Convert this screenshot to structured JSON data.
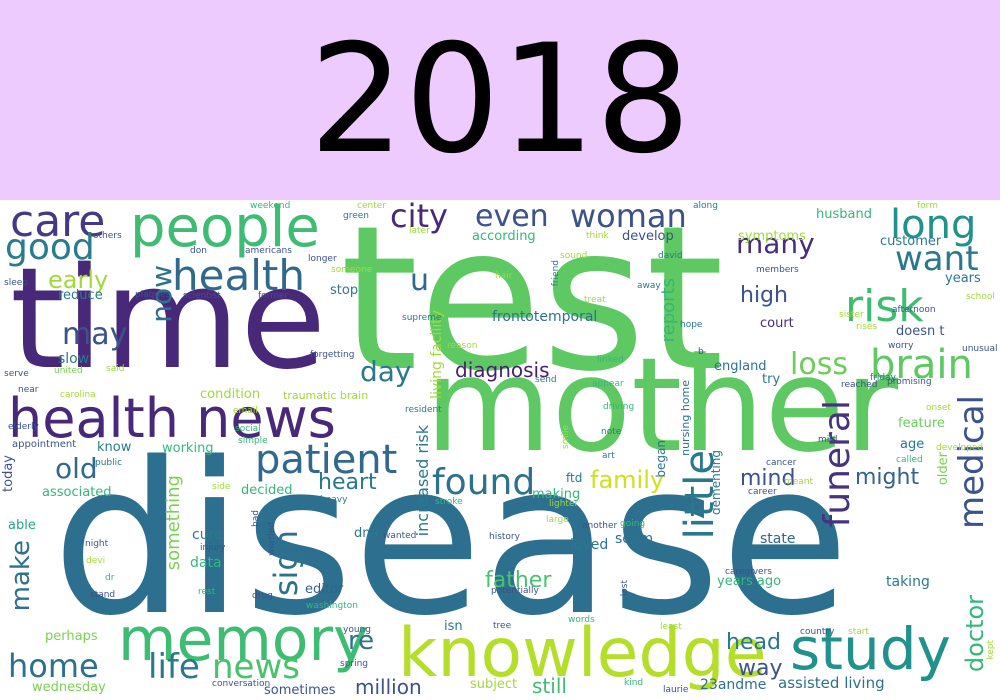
{
  "banner": {
    "title": "2018",
    "background": "#eecbff"
  },
  "cloud": {
    "palette": "viridis",
    "words": [
      {
        "text": "disease",
        "color": "#2d6f8e"
      },
      {
        "text": "test",
        "color": "#5ec962"
      },
      {
        "text": "mother",
        "color": "#5ec962"
      },
      {
        "text": "time",
        "color": "#482878"
      },
      {
        "text": "health news",
        "color": "#482878"
      },
      {
        "text": "knowledge",
        "color": "#b5de2b"
      },
      {
        "text": "memory",
        "color": "#3fbc73"
      },
      {
        "text": "study",
        "color": "#21918c"
      },
      {
        "text": "people",
        "color": "#3fbc73"
      },
      {
        "text": "care",
        "color": "#443983"
      },
      {
        "text": "good",
        "color": "#287c8e"
      },
      {
        "text": "health",
        "color": "#31688e"
      },
      {
        "text": "patient",
        "color": "#31688e"
      },
      {
        "text": "risk",
        "color": "#3fbc73"
      },
      {
        "text": "long",
        "color": "#21918c"
      },
      {
        "text": "want",
        "color": "#2a788e"
      },
      {
        "text": "brain",
        "color": "#5ec962"
      },
      {
        "text": "medical",
        "color": "#3b528b"
      },
      {
        "text": "funeral",
        "color": "#46337e"
      },
      {
        "text": "little",
        "color": "#2a788e"
      },
      {
        "text": "doctor",
        "color": "#35b779"
      },
      {
        "text": "found",
        "color": "#2c728e"
      },
      {
        "text": "home",
        "color": "#2c728e"
      },
      {
        "text": "life",
        "color": "#2a788e"
      },
      {
        "text": "news",
        "color": "#4ac16d"
      },
      {
        "text": "make",
        "color": "#2c728e"
      },
      {
        "text": "sign",
        "color": "#2c728e"
      },
      {
        "text": "city",
        "color": "#482878"
      },
      {
        "text": "even",
        "color": "#3b528b"
      },
      {
        "text": "woman",
        "color": "#3b528b"
      },
      {
        "text": "many",
        "color": "#472d7b"
      },
      {
        "text": "may",
        "color": "#3b528b"
      },
      {
        "text": "now",
        "color": "#2c728e"
      },
      {
        "text": "day",
        "color": "#2a788e"
      },
      {
        "text": "loss",
        "color": "#6ccd5a"
      },
      {
        "text": "old",
        "color": "#31688e"
      },
      {
        "text": "u",
        "color": "#31688e"
      },
      {
        "text": "early",
        "color": "#a0da39"
      },
      {
        "text": "re",
        "color": "#2c728e"
      },
      {
        "text": "million",
        "color": "#3b528b"
      },
      {
        "text": "still",
        "color": "#3fbc73"
      },
      {
        "text": "head",
        "color": "#2a788e"
      },
      {
        "text": "way",
        "color": "#3b528b"
      },
      {
        "text": "father",
        "color": "#4ac16d"
      },
      {
        "text": "family",
        "color": "#d0e11c"
      },
      {
        "text": "heart",
        "color": "#2a788e"
      },
      {
        "text": "mind",
        "color": "#3b528b"
      },
      {
        "text": "might",
        "color": "#33638d"
      },
      {
        "text": "high",
        "color": "#3b528b"
      },
      {
        "text": "diagnosis",
        "color": "#481f70"
      },
      {
        "text": "reports",
        "color": "#35b779"
      },
      {
        "text": "something",
        "color": "#7ad151"
      },
      {
        "text": "increased risk",
        "color": "#2a788e"
      },
      {
        "text": "frontotemporal",
        "color": "#2c728e"
      },
      {
        "text": "living facility",
        "color": "#a0da39"
      },
      {
        "text": "assisted living",
        "color": "#2c728e"
      },
      {
        "text": "23andme",
        "color": "#2c728e"
      },
      {
        "text": "years ago",
        "color": "#35b779"
      },
      {
        "text": "taking",
        "color": "#2a788e"
      },
      {
        "text": "state",
        "color": "#33638d"
      },
      {
        "text": "seem",
        "color": "#2c728e"
      },
      {
        "text": "loved",
        "color": "#2a788e"
      },
      {
        "text": "cure",
        "color": "#2a788e"
      },
      {
        "text": "data",
        "color": "#35b779"
      },
      {
        "text": "editor",
        "color": "#33638d"
      },
      {
        "text": "dna",
        "color": "#2a788e"
      },
      {
        "text": "isn",
        "color": "#2a788e"
      },
      {
        "text": "subject",
        "color": "#a0da39"
      },
      {
        "text": "sometimes",
        "color": "#3b528b"
      },
      {
        "text": "wednesday",
        "color": "#7ad151"
      },
      {
        "text": "perhaps",
        "color": "#7ad151"
      },
      {
        "text": "able",
        "color": "#22a884"
      },
      {
        "text": "associated",
        "color": "#35b779"
      },
      {
        "text": "today",
        "color": "#3b528b"
      },
      {
        "text": "working",
        "color": "#35b779"
      },
      {
        "text": "know",
        "color": "#287c8e"
      },
      {
        "text": "slow",
        "color": "#2a788e"
      },
      {
        "text": "stop",
        "color": "#2a788e"
      },
      {
        "text": "reduce",
        "color": "#2a788e"
      },
      {
        "text": "condition",
        "color": "#a0da39"
      },
      {
        "text": "decided",
        "color": "#35b779"
      },
      {
        "text": "making",
        "color": "#35b779"
      },
      {
        "text": "ftd",
        "color": "#2a788e"
      },
      {
        "text": "according",
        "color": "#35b779"
      },
      {
        "text": "develop",
        "color": "#3b528b"
      },
      {
        "text": "symptoms",
        "color": "#a0da39"
      },
      {
        "text": "husband",
        "color": "#35b779"
      },
      {
        "text": "customer",
        "color": "#2a788e"
      },
      {
        "text": "years",
        "color": "#2a788e"
      },
      {
        "text": "court",
        "color": "#472d7b"
      },
      {
        "text": "doesn t",
        "color": "#3b528b"
      },
      {
        "text": "england",
        "color": "#2c728e"
      },
      {
        "text": "try",
        "color": "#2a788e"
      },
      {
        "text": "feature",
        "color": "#6ccd5a"
      },
      {
        "text": "age",
        "color": "#2a788e"
      },
      {
        "text": "older",
        "color": "#7ad151"
      },
      {
        "text": "began",
        "color": "#2c728e"
      },
      {
        "text": "dementing",
        "color": "#2a788e"
      },
      {
        "text": "nursing home",
        "color": "#2c728e"
      },
      {
        "text": "traumatic brain",
        "color": "#a0da39"
      },
      {
        "text": "appointment",
        "color": "#3b528b"
      },
      {
        "text": "plaques",
        "color": "#3b528b"
      },
      {
        "text": "scientist",
        "color": "#3b528b"
      },
      {
        "text": "former",
        "color": "#3b528b"
      },
      {
        "text": "longer",
        "color": "#3b528b"
      },
      {
        "text": "forgetting",
        "color": "#3b528b"
      },
      {
        "text": "americans",
        "color": "#3b528b"
      },
      {
        "text": "don",
        "color": "#3b528b"
      },
      {
        "text": "others",
        "color": "#3b528b"
      },
      {
        "text": "sleep",
        "color": "#3b528b"
      },
      {
        "text": "serve",
        "color": "#3b528b"
      },
      {
        "text": "near",
        "color": "#3b528b"
      },
      {
        "text": "elderly",
        "color": "#3b528b"
      },
      {
        "text": "public",
        "color": "#2a788e"
      },
      {
        "text": "said",
        "color": "#a0da39"
      },
      {
        "text": "united",
        "color": "#7ad151"
      },
      {
        "text": "weekend",
        "color": "#35b779"
      },
      {
        "text": "green",
        "color": "#2a788e"
      },
      {
        "text": "center",
        "color": "#a0da39"
      },
      {
        "text": "later",
        "color": "#a0da39"
      },
      {
        "text": "someone",
        "color": "#a0da39"
      },
      {
        "text": "hair",
        "color": "#a0da39"
      },
      {
        "text": "sound",
        "color": "#a0da39"
      },
      {
        "text": "think",
        "color": "#a0da39"
      },
      {
        "text": "friend",
        "color": "#2a788e"
      },
      {
        "text": "treat",
        "color": "#a0da39"
      },
      {
        "text": "supreme",
        "color": "#2a788e"
      },
      {
        "text": "reason",
        "color": "#a0da39"
      },
      {
        "text": "david",
        "color": "#2a788e"
      },
      {
        "text": "along",
        "color": "#2a788e"
      },
      {
        "text": "away",
        "color": "#2a788e"
      },
      {
        "text": "hope",
        "color": "#2a788e"
      },
      {
        "text": "linked",
        "color": "#35b779"
      },
      {
        "text": "appear",
        "color": "#35b779"
      },
      {
        "text": "send",
        "color": "#2a788e"
      },
      {
        "text": "resident",
        "color": "#2a788e"
      },
      {
        "text": "email",
        "color": "#a0da39"
      },
      {
        "text": "social",
        "color": "#35b779"
      },
      {
        "text": "simple",
        "color": "#35b779"
      },
      {
        "text": "carolina",
        "color": "#a0da39"
      },
      {
        "text": "driving",
        "color": "#35b779"
      },
      {
        "text": "note",
        "color": "#2a788e"
      },
      {
        "text": "art",
        "color": "#2a788e"
      },
      {
        "text": "smile",
        "color": "#a0da39"
      },
      {
        "text": "stroke",
        "color": "#35b779"
      },
      {
        "text": "side",
        "color": "#a0da39"
      },
      {
        "text": "heavy",
        "color": "#2a788e"
      },
      {
        "text": "bad",
        "color": "#3b528b"
      },
      {
        "text": "worried",
        "color": "#3b528b"
      },
      {
        "text": "wanted",
        "color": "#3b528b"
      },
      {
        "text": "injury",
        "color": "#3b528b"
      },
      {
        "text": "night",
        "color": "#3b528b"
      },
      {
        "text": "devi",
        "color": "#a0da39"
      },
      {
        "text": "dr",
        "color": "#35b779"
      },
      {
        "text": "stand",
        "color": "#3b528b"
      },
      {
        "text": "rest",
        "color": "#35b779"
      },
      {
        "text": "drug",
        "color": "#3b528b"
      },
      {
        "text": "washington",
        "color": "#35b779"
      },
      {
        "text": "young",
        "color": "#3b528b"
      },
      {
        "text": "spring",
        "color": "#3b528b"
      },
      {
        "text": "conversation",
        "color": "#3b528b"
      },
      {
        "text": "tree",
        "color": "#3b528b"
      },
      {
        "text": "potentially",
        "color": "#3b528b"
      },
      {
        "text": "history",
        "color": "#3b528b"
      },
      {
        "text": "large",
        "color": "#a0da39"
      },
      {
        "text": "another",
        "color": "#3b528b"
      },
      {
        "text": "lighter",
        "color": "#a0da39"
      },
      {
        "text": "going",
        "color": "#35b779"
      },
      {
        "text": "lost",
        "color": "#3b528b"
      },
      {
        "text": "words",
        "color": "#35b779"
      },
      {
        "text": "kind",
        "color": "#35b779"
      },
      {
        "text": "laurie",
        "color": "#3b528b"
      },
      {
        "text": "least",
        "color": "#a0da39"
      },
      {
        "text": "country",
        "color": "#3b528b"
      },
      {
        "text": "start",
        "color": "#a0da39"
      },
      {
        "text": "caregivers",
        "color": "#3b528b"
      },
      {
        "text": "career",
        "color": "#3b528b"
      },
      {
        "text": "cancer",
        "color": "#3b528b"
      },
      {
        "text": "meant",
        "color": "#a0da39"
      },
      {
        "text": "mild",
        "color": "#3b528b"
      },
      {
        "text": "called",
        "color": "#35b779"
      },
      {
        "text": "onset",
        "color": "#a0da39"
      },
      {
        "text": "reached",
        "color": "#3b528b"
      },
      {
        "text": "friday",
        "color": "#2a788e"
      },
      {
        "text": "rises",
        "color": "#a0da39"
      },
      {
        "text": "worry",
        "color": "#3b528b"
      },
      {
        "text": "unusual",
        "color": "#3b528b"
      },
      {
        "text": "afternoon",
        "color": "#3b528b"
      },
      {
        "text": "sister",
        "color": "#a0da39"
      },
      {
        "text": "promising",
        "color": "#3b528b"
      },
      {
        "text": "members",
        "color": "#3b528b"
      },
      {
        "text": "b",
        "color": "#3b528b"
      },
      {
        "text": "school",
        "color": "#a0da39"
      },
      {
        "text": "form",
        "color": "#a0da39"
      },
      {
        "text": "kept",
        "color": "#a0da39"
      },
      {
        "text": "developed",
        "color": "#a0da39"
      },
      {
        "text": "lower",
        "color": "#3b528b"
      },
      {
        "text": "l",
        "color": "#3b528b"
      }
    ]
  }
}
